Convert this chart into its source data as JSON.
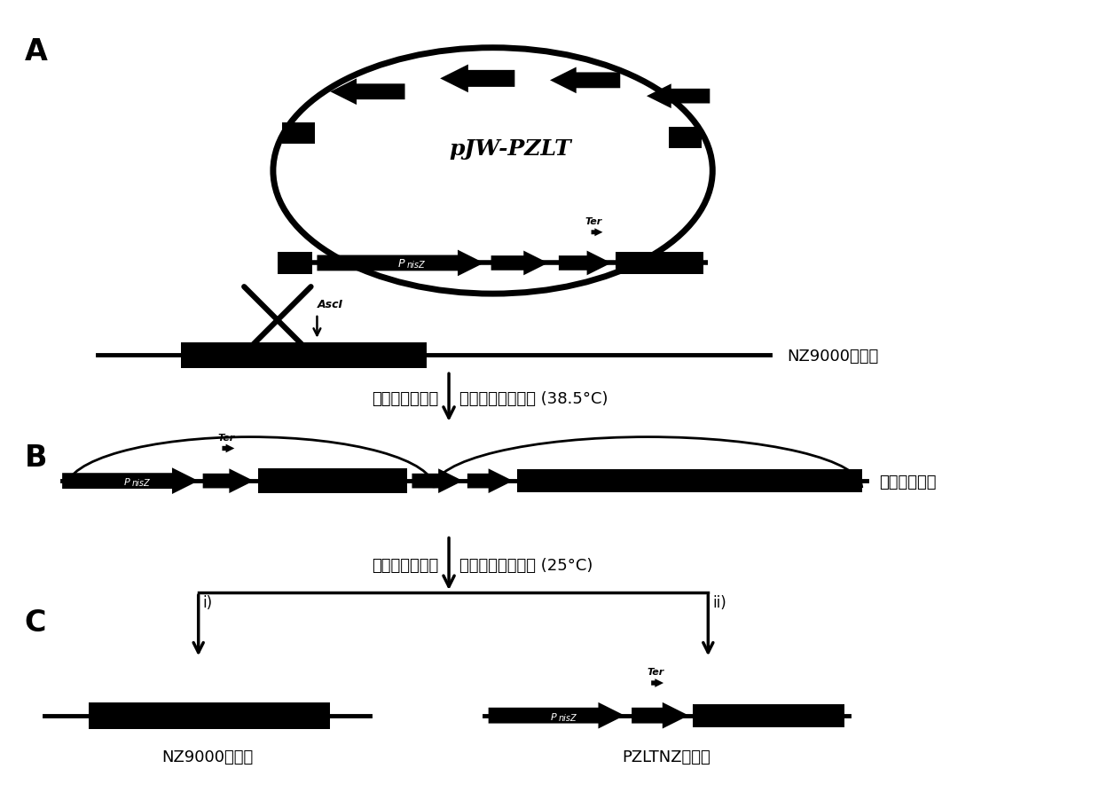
{
  "bg_color": "#ffffff",
  "panel_A_label": "A",
  "panel_B_label": "B",
  "panel_C_label": "C",
  "plasmid_name": "pJW-PZLT",
  "NZ9000_label": "NZ9000基因组",
  "integrant_label": "整合子基因组",
  "NZ9000_label2": "NZ9000基因组",
  "PZLTNZ_label": "PZLTNZ基因组",
  "Ter_label": "Ter",
  "AscI_label": "AscI",
  "step1_left": "含红霉素培养基",
  "step1_right": "高温诱导质粒整合 (38.5°C)",
  "step2_left": "无抗生素培养基",
  "step2_right": "低温诱导质粒切离 (25°C)",
  "arrow_i": "i)",
  "arrow_ii": "ii)"
}
